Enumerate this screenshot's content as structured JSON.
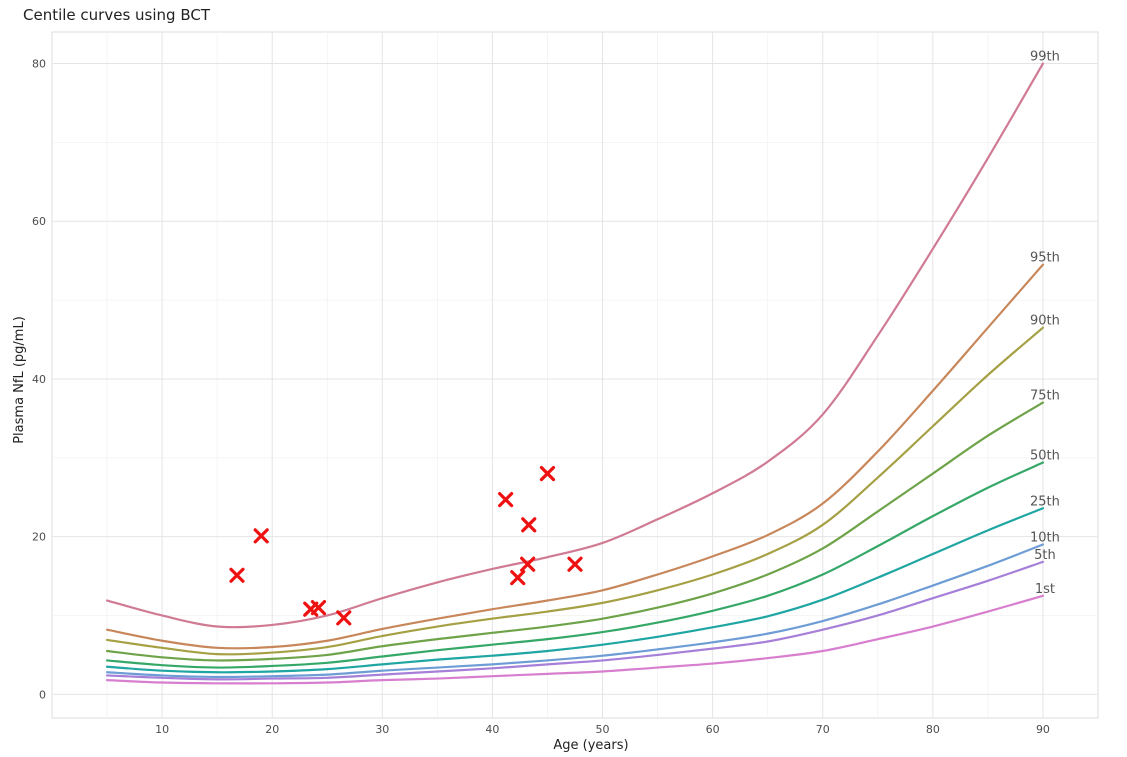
{
  "chart_data": {
    "type": "line",
    "title": "Centile curves using BCT",
    "xlabel": "Age (years)",
    "ylabel": "Plasma NfL (pg/mL)",
    "xlim": [
      0,
      95
    ],
    "ylim": [
      -3,
      84
    ],
    "x_ticks": [
      10,
      20,
      30,
      40,
      50,
      60,
      70,
      80,
      90
    ],
    "y_ticks": [
      0,
      20,
      40,
      60,
      80
    ],
    "grid": true,
    "legend": "none",
    "series": [
      {
        "name": "1st",
        "color": "#d87ecf",
        "x": [
          5,
          10,
          15,
          20,
          25,
          30,
          35,
          40,
          45,
          50,
          55,
          60,
          65,
          70,
          75,
          80,
          85,
          90
        ],
        "y": [
          1.8,
          1.5,
          1.4,
          1.4,
          1.5,
          1.8,
          2.0,
          2.3,
          2.6,
          2.9,
          3.4,
          3.9,
          4.6,
          5.5,
          7.0,
          8.6,
          10.5,
          12.5
        ]
      },
      {
        "name": "5th",
        "color": "#a67fd8",
        "x": [
          5,
          10,
          15,
          20,
          25,
          30,
          35,
          40,
          45,
          50,
          55,
          60,
          65,
          70,
          75,
          80,
          85,
          90
        ],
        "y": [
          2.4,
          2.1,
          1.9,
          2.0,
          2.1,
          2.5,
          2.9,
          3.3,
          3.8,
          4.3,
          5.0,
          5.8,
          6.7,
          8.2,
          10.0,
          12.2,
          14.4,
          16.8
        ]
      },
      {
        "name": "10th",
        "color": "#6e9dd6",
        "x": [
          5,
          10,
          15,
          20,
          25,
          30,
          35,
          40,
          45,
          50,
          55,
          60,
          65,
          70,
          75,
          80,
          85,
          90
        ],
        "y": [
          2.8,
          2.4,
          2.2,
          2.3,
          2.5,
          3.0,
          3.4,
          3.8,
          4.3,
          4.9,
          5.7,
          6.6,
          7.7,
          9.3,
          11.4,
          13.8,
          16.3,
          19.0
        ]
      },
      {
        "name": "25th",
        "color": "#1fa6a3",
        "x": [
          5,
          10,
          15,
          20,
          25,
          30,
          35,
          40,
          45,
          50,
          55,
          60,
          65,
          70,
          75,
          80,
          85,
          90
        ],
        "y": [
          3.5,
          3.0,
          2.8,
          2.9,
          3.2,
          3.8,
          4.4,
          4.9,
          5.5,
          6.3,
          7.3,
          8.5,
          9.9,
          12.0,
          14.8,
          17.8,
          20.8,
          23.6
        ]
      },
      {
        "name": "50th",
        "color": "#35a868",
        "x": [
          5,
          10,
          15,
          20,
          25,
          30,
          35,
          40,
          45,
          50,
          55,
          60,
          65,
          70,
          75,
          80,
          85,
          90
        ],
        "y": [
          4.3,
          3.7,
          3.4,
          3.6,
          4.0,
          4.8,
          5.6,
          6.3,
          7.0,
          7.9,
          9.1,
          10.6,
          12.5,
          15.2,
          18.8,
          22.6,
          26.2,
          29.4
        ]
      },
      {
        "name": "75th",
        "color": "#6fa34a",
        "x": [
          5,
          10,
          15,
          20,
          25,
          30,
          35,
          40,
          45,
          50,
          55,
          60,
          65,
          70,
          75,
          80,
          85,
          90
        ],
        "y": [
          5.5,
          4.7,
          4.3,
          4.5,
          5.0,
          6.1,
          7.0,
          7.8,
          8.6,
          9.6,
          11.0,
          12.8,
          15.2,
          18.5,
          23.2,
          28.0,
          32.8,
          37.0
        ]
      },
      {
        "name": "90th",
        "color": "#a6a045",
        "x": [
          5,
          10,
          15,
          20,
          25,
          30,
          35,
          40,
          45,
          50,
          55,
          60,
          65,
          70,
          75,
          80,
          85,
          90
        ],
        "y": [
          6.9,
          5.9,
          5.1,
          5.3,
          6.0,
          7.4,
          8.6,
          9.6,
          10.5,
          11.6,
          13.2,
          15.2,
          17.8,
          21.5,
          27.5,
          34.0,
          40.5,
          46.5
        ]
      },
      {
        "name": "95th",
        "color": "#c8875b",
        "x": [
          5,
          10,
          15,
          20,
          25,
          30,
          35,
          40,
          45,
          50,
          55,
          60,
          65,
          70,
          75,
          80,
          85,
          90
        ],
        "y": [
          8.2,
          6.8,
          5.9,
          6.0,
          6.8,
          8.3,
          9.6,
          10.8,
          11.9,
          13.2,
          15.2,
          17.5,
          20.2,
          24.2,
          30.8,
          38.5,
          46.5,
          54.5
        ]
      },
      {
        "name": "99th",
        "color": "#d07a93",
        "x": [
          5,
          10,
          15,
          20,
          25,
          30,
          35,
          40,
          45,
          50,
          55,
          60,
          65,
          70,
          75,
          80,
          85,
          90
        ],
        "y": [
          11.9,
          10.0,
          8.6,
          8.8,
          10.0,
          12.2,
          14.2,
          15.9,
          17.4,
          19.2,
          22.2,
          25.5,
          29.5,
          35.5,
          45.5,
          56.5,
          68.0,
          80.0
        ]
      }
    ],
    "points": {
      "color": "#ee1111",
      "x": [
        16.8,
        19.0,
        23.5,
        24.2,
        26.5,
        41.2,
        42.3,
        43.2,
        43.3,
        45.0,
        47.5
      ],
      "y": [
        15.1,
        20.1,
        10.8,
        11.0,
        9.7,
        24.7,
        14.8,
        16.5,
        21.5,
        28.0,
        16.5
      ]
    }
  }
}
